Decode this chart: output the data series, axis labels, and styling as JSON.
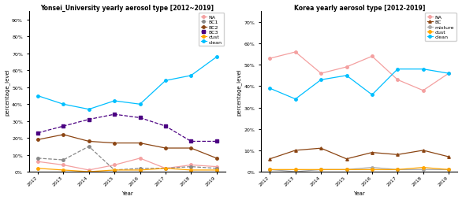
{
  "years": [
    2012,
    2013,
    2014,
    2015,
    2016,
    2017,
    2018,
    2019
  ],
  "left_title": "Yonsei_University yearly aerosol type [2012~2019]",
  "right_title": "Korea yearly aerosol type [2012-2019]",
  "left_ylabel": "percentage_level",
  "right_ylabel": "percentage_level",
  "xlabel": "Year",
  "left_series": {
    "NA": {
      "values": [
        6,
        4,
        1,
        4,
        8,
        2,
        4,
        3
      ],
      "color": "#f4a0a0",
      "marker": "o",
      "linestyle": "-"
    },
    "BC1": {
      "values": [
        8,
        7,
        15,
        1,
        2,
        2,
        3,
        2
      ],
      "color": "#888888",
      "marker": "o",
      "linestyle": "--"
    },
    "BC2": {
      "values": [
        19,
        22,
        18,
        17,
        17,
        14,
        14,
        8
      ],
      "color": "#8B4513",
      "marker": "o",
      "linestyle": "-"
    },
    "BC3": {
      "values": [
        23,
        27,
        31,
        34,
        32,
        27,
        18,
        18
      ],
      "color": "#4B0082",
      "marker": "s",
      "linestyle": "--"
    },
    "dust": {
      "values": [
        2,
        1,
        0,
        1,
        1,
        2,
        1,
        1
      ],
      "color": "#FFA500",
      "marker": "o",
      "linestyle": "-"
    },
    "clean": {
      "values": [
        45,
        40,
        37,
        42,
        40,
        54,
        57,
        68
      ],
      "color": "#00BFFF",
      "marker": "o",
      "linestyle": "-"
    }
  },
  "right_series": {
    "NA": {
      "values": [
        53,
        56,
        46,
        49,
        54,
        43,
        38,
        46
      ],
      "color": "#f4a0a0",
      "marker": "o",
      "linestyle": "-"
    },
    "BC": {
      "values": [
        6,
        10,
        11,
        6,
        9,
        8,
        10,
        7
      ],
      "color": "#8B4513",
      "marker": "^",
      "linestyle": "-"
    },
    "mixture": {
      "values": [
        1,
        0,
        1,
        1,
        2,
        1,
        1,
        1
      ],
      "color": "#aaaaaa",
      "marker": "o",
      "linestyle": "-"
    },
    "dust": {
      "values": [
        1,
        1,
        1,
        1,
        1,
        1,
        2,
        1
      ],
      "color": "#FFA500",
      "marker": "o",
      "linestyle": "-"
    },
    "clean": {
      "values": [
        39,
        34,
        43,
        45,
        36,
        48,
        48,
        46
      ],
      "color": "#00BFFF",
      "marker": "o",
      "linestyle": "-"
    }
  },
  "left_ylim": [
    0,
    95
  ],
  "right_ylim": [
    0,
    75
  ],
  "left_yticks": [
    0,
    10,
    20,
    30,
    40,
    50,
    60,
    70,
    80,
    90
  ],
  "right_yticks": [
    0,
    10,
    20,
    30,
    40,
    50,
    60,
    70
  ]
}
